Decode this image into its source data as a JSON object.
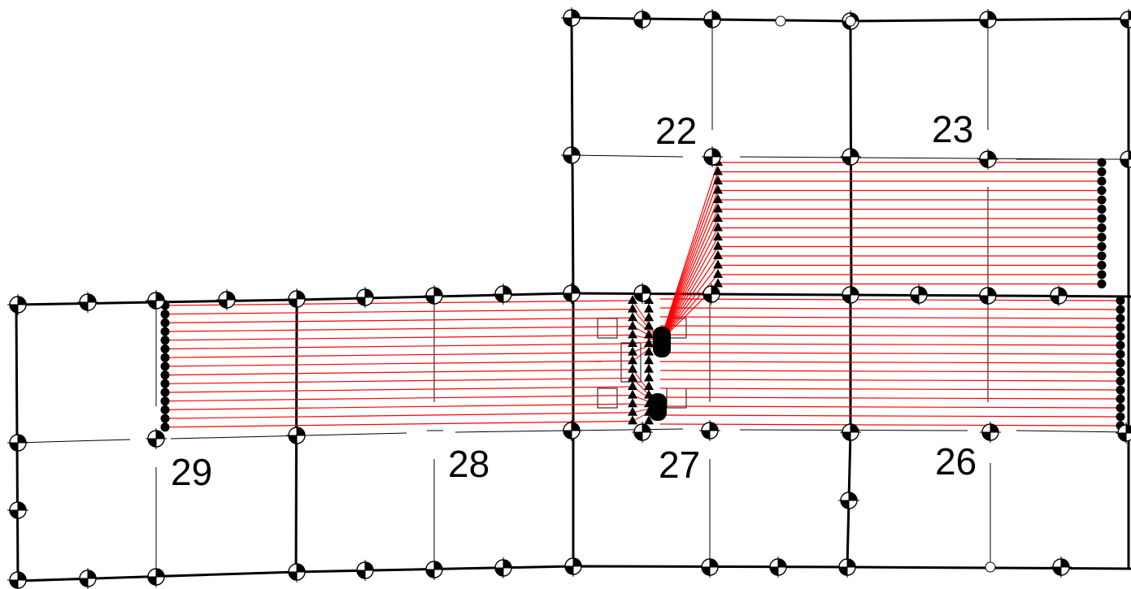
{
  "drawing": {
    "colors": {
      "line": "#000000",
      "cable": "#ff0000",
      "background": "#ffffff"
    },
    "parcel_labels": [
      "22",
      "23",
      "29",
      "28",
      "27",
      "26"
    ],
    "marker_icon": "survey-benchmark-icon",
    "anchor_icon": "triangle-anchor-icon",
    "terminal_icon": "filled-dot-icon"
  }
}
